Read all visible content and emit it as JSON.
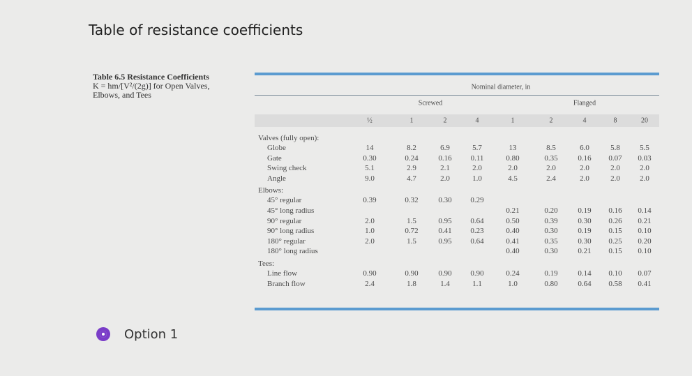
{
  "page_title": "Table of resistance coefficients",
  "table": {
    "caption": [
      "Table 6.5 Resistance Coefficients",
      "K = hm/[V²/(2g)] for Open Valves,",
      "Elbows, and Tees"
    ],
    "header": "Nominal diameter, in",
    "groups": [
      "Screwed",
      "Flanged"
    ],
    "columns": [
      "½",
      "1",
      "2",
      "4",
      "1",
      "2",
      "4",
      "8",
      "20"
    ],
    "sections": [
      {
        "heading": "Valves (fully open):",
        "rows": [
          {
            "label": "Globe",
            "values": [
              "14",
              "8.2",
              "6.9",
              "5.7",
              "13",
              "8.5",
              "6.0",
              "5.8",
              "5.5"
            ]
          },
          {
            "label": "Gate",
            "values": [
              "0.30",
              "0.24",
              "0.16",
              "0.11",
              "0.80",
              "0.35",
              "0.16",
              "0.07",
              "0.03"
            ]
          },
          {
            "label": "Swing check",
            "values": [
              "5.1",
              "2.9",
              "2.1",
              "2.0",
              "2.0",
              "2.0",
              "2.0",
              "2.0",
              "2.0"
            ]
          },
          {
            "label": "Angle",
            "values": [
              "9.0",
              "4.7",
              "2.0",
              "1.0",
              "4.5",
              "2.4",
              "2.0",
              "2.0",
              "2.0"
            ]
          }
        ]
      },
      {
        "heading": "Elbows:",
        "rows": [
          {
            "label": "45° regular",
            "values": [
              "0.39",
              "0.32",
              "0.30",
              "0.29",
              null,
              null,
              null,
              null,
              null
            ]
          },
          {
            "label": "45° long radius",
            "values": [
              null,
              null,
              null,
              null,
              "0.21",
              "0.20",
              "0.19",
              "0.16",
              "0.14"
            ]
          },
          {
            "label": "90° regular",
            "values": [
              "2.0",
              "1.5",
              "0.95",
              "0.64",
              "0.50",
              "0.39",
              "0.30",
              "0.26",
              "0.21"
            ]
          },
          {
            "label": "90° long radius",
            "values": [
              "1.0",
              "0.72",
              "0.41",
              "0.23",
              "0.40",
              "0.30",
              "0.19",
              "0.15",
              "0.10"
            ]
          },
          {
            "label": "180° regular",
            "values": [
              "2.0",
              "1.5",
              "0.95",
              "0.64",
              "0.41",
              "0.35",
              "0.30",
              "0.25",
              "0.20"
            ]
          },
          {
            "label": "180° long radius",
            "values": [
              null,
              null,
              null,
              null,
              "0.40",
              "0.30",
              "0.21",
              "0.15",
              "0.10"
            ]
          }
        ]
      },
      {
        "heading": "Tees:",
        "rows": [
          {
            "label": "Line flow",
            "values": [
              "0.90",
              "0.90",
              "0.90",
              "0.90",
              "0.24",
              "0.19",
              "0.14",
              "0.10",
              "0.07"
            ]
          },
          {
            "label": "Branch flow",
            "values": [
              "2.4",
              "1.8",
              "1.4",
              "1.1",
              "1.0",
              "0.80",
              "0.64",
              "0.58",
              "0.41"
            ]
          }
        ]
      }
    ]
  },
  "option": "Option 1"
}
